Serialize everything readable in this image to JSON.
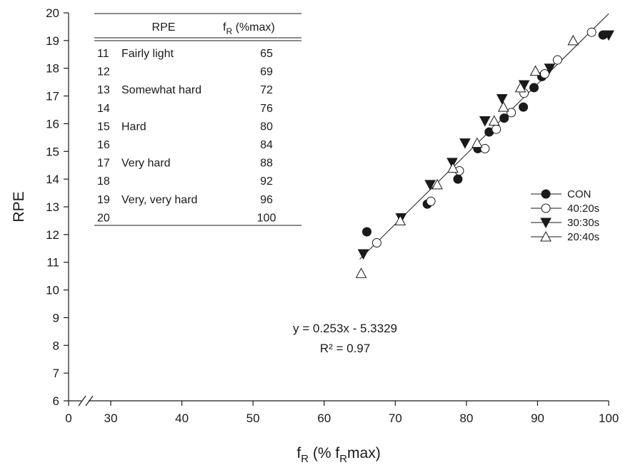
{
  "chart_data": {
    "type": "scatter",
    "xlabel": {
      "main": "f",
      "sub": "R",
      "rest_open": " (% f",
      "sub2": "R",
      "rest_close": "max)"
    },
    "ylabel": "RPE",
    "xlim": [
      25,
      100
    ],
    "ylim": [
      6,
      20
    ],
    "x_ticks": [
      "0",
      "30",
      "40",
      "50",
      "60",
      "70",
      "80",
      "90",
      "100"
    ],
    "y_ticks": [
      "6",
      "7",
      "8",
      "9",
      "10",
      "11",
      "12",
      "13",
      "14",
      "15",
      "16",
      "17",
      "18",
      "19",
      "20"
    ],
    "axis_break": true,
    "legend_position": "right",
    "series": [
      {
        "name": "CON",
        "marker": "filled-circle",
        "points": [
          [
            66.0,
            12.1
          ],
          [
            74.5,
            13.1
          ],
          [
            78.8,
            14.0
          ],
          [
            81.6,
            15.1
          ],
          [
            83.2,
            15.7
          ],
          [
            85.3,
            16.2
          ],
          [
            88.0,
            16.6
          ],
          [
            89.5,
            17.3
          ],
          [
            90.6,
            17.7
          ],
          [
            99.2,
            19.2
          ]
        ]
      },
      {
        "name": "40:20s",
        "marker": "open-circle",
        "points": [
          [
            67.4,
            11.7
          ],
          [
            75.0,
            13.2
          ],
          [
            79.0,
            14.3
          ],
          [
            82.6,
            15.1
          ],
          [
            84.2,
            15.8
          ],
          [
            86.3,
            16.4
          ],
          [
            88.1,
            17.1
          ],
          [
            91.0,
            17.8
          ],
          [
            92.8,
            18.3
          ],
          [
            97.6,
            19.3
          ]
        ]
      },
      {
        "name": "30:30s",
        "marker": "filled-triangle-down",
        "points": [
          [
            65.5,
            11.3
          ],
          [
            70.8,
            12.6
          ],
          [
            74.9,
            13.8
          ],
          [
            78.0,
            14.6
          ],
          [
            79.8,
            15.3
          ],
          [
            82.6,
            16.1
          ],
          [
            85.0,
            16.9
          ],
          [
            88.1,
            17.4
          ],
          [
            91.7,
            18.0
          ],
          [
            100.0,
            19.2
          ]
        ]
      },
      {
        "name": "20:40s",
        "marker": "open-triangle-up",
        "points": [
          [
            65.2,
            10.6
          ],
          [
            70.7,
            12.5
          ],
          [
            75.9,
            13.8
          ],
          [
            78.1,
            14.4
          ],
          [
            81.5,
            15.3
          ],
          [
            83.9,
            16.1
          ],
          [
            85.2,
            16.6
          ],
          [
            87.6,
            17.3
          ],
          [
            89.7,
            17.9
          ],
          [
            95.0,
            19.0
          ]
        ]
      }
    ],
    "regression": {
      "slope": 0.253,
      "intercept": -5.3329,
      "x_range": [
        65.0,
        100.0
      ]
    },
    "equation_text": "y = 0.253x - 5.3329",
    "r2_text": "R² = 0.97",
    "table": {
      "header_rpe": "RPE",
      "header_fr_main": "f",
      "header_fr_sub": "R",
      "header_fr_rest": " (%max)",
      "rows": [
        {
          "rpe": "11",
          "desc": "Fairly light",
          "fr": "65"
        },
        {
          "rpe": "12",
          "desc": "",
          "fr": "69"
        },
        {
          "rpe": "13",
          "desc": "Somewhat hard",
          "fr": "72"
        },
        {
          "rpe": "14",
          "desc": "",
          "fr": "76"
        },
        {
          "rpe": "15",
          "desc": "Hard",
          "fr": "80"
        },
        {
          "rpe": "16",
          "desc": "",
          "fr": "84"
        },
        {
          "rpe": "17",
          "desc": "Very hard",
          "fr": "88"
        },
        {
          "rpe": "18",
          "desc": "",
          "fr": "92"
        },
        {
          "rpe": "19",
          "desc": "Very, very hard",
          "fr": "96"
        },
        {
          "rpe": "20",
          "desc": "",
          "fr": "100"
        }
      ]
    }
  }
}
